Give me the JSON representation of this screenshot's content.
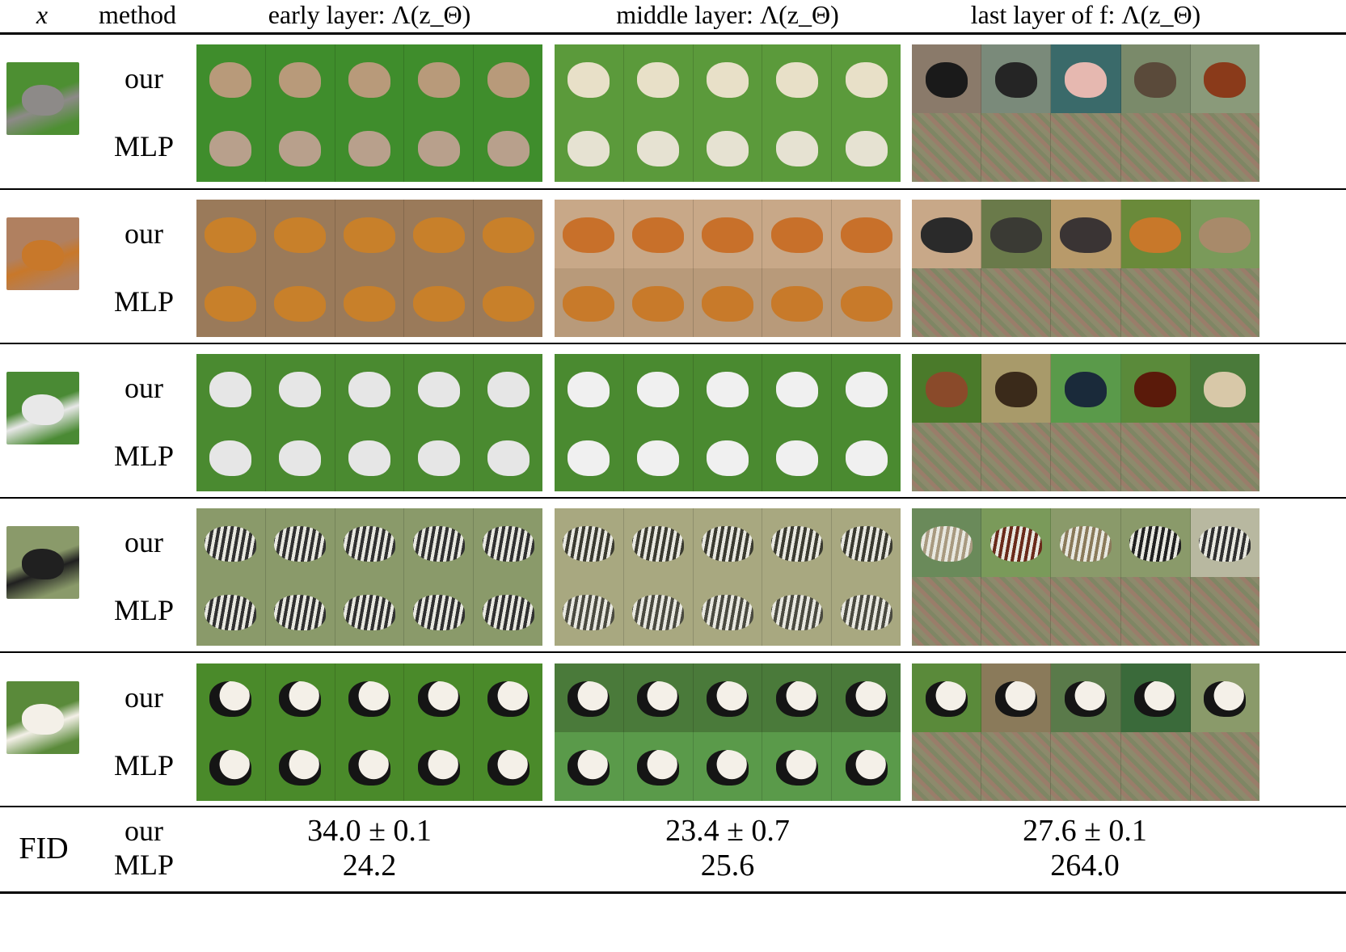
{
  "header": {
    "x_col": "x",
    "method_col": "method",
    "col_early": "early layer: Λ(z_Θ)",
    "col_middle": "middle layer: Λ(z_Θ)",
    "col_last": "last layer of f: Λ(z_Θ)"
  },
  "method_labels": {
    "ours": "our",
    "mlp": "MLP"
  },
  "rows": [
    {
      "subject": "dog-grazing",
      "x_colors": [
        "#4d8f32",
        "#8d8a88"
      ],
      "early_our": [
        "#3f8d2c",
        "#b89a7a"
      ],
      "early_mlp": [
        "#3f8d2c",
        "#b8a08c"
      ],
      "mid_our": [
        "#5b9a3b",
        "#e8e0c8"
      ],
      "mid_mlp": [
        "#5b9a3b",
        "#e6e2d2"
      ],
      "last_our": [
        [
          "#8a7a6a",
          "#1a1a1a"
        ],
        [
          "#7a8a7a",
          "#252525"
        ],
        [
          "#3a6a6a",
          "#e6b8b0"
        ],
        [
          "#7a8a6a",
          "#5a4a3a"
        ],
        [
          "#8a9a7a",
          "#8a3a1a"
        ]
      ],
      "last_mlp": [
        "#8a8a6a",
        "#9a7a6a"
      ]
    },
    {
      "subject": "red-fox",
      "x_colors": [
        "#b08060",
        "#c8782a"
      ],
      "early_our": [
        "#9a7a5a",
        "#c8802a"
      ],
      "early_mlp": [
        "#9a7a5a",
        "#c8802a"
      ],
      "mid_our": [
        "#c8a888",
        "#c8702a"
      ],
      "mid_mlp": [
        "#b89a7a",
        "#c87a2a"
      ],
      "last_our": [
        [
          "#c8a888",
          "#2a2a2a"
        ],
        [
          "#6a7a4a",
          "#3a3a34"
        ],
        [
          "#b89a6a",
          "#3a3434"
        ],
        [
          "#6a8a3a",
          "#c8782a"
        ],
        [
          "#7a9a5a",
          "#a88a6a"
        ]
      ],
      "last_mlp": [
        "#8a8a6a",
        "#9a7a6a"
      ]
    },
    {
      "subject": "dog-sitting",
      "x_colors": [
        "#4a8a34",
        "#e8e8e8"
      ],
      "early_our": [
        "#4a8a30",
        "#e6e6e6"
      ],
      "early_mlp": [
        "#4a8a30",
        "#e6e6e6"
      ],
      "mid_our": [
        "#4a8a30",
        "#f0f0f0"
      ],
      "mid_mlp": [
        "#4a8a30",
        "#f0f0f0"
      ],
      "last_our": [
        [
          "#4a7a2a",
          "#8a4a2a"
        ],
        [
          "#a89a6a",
          "#3a2a1a"
        ],
        [
          "#5a9a4a",
          "#1a2a3a"
        ],
        [
          "#5a8a3a",
          "#5a1a0a"
        ],
        [
          "#4a7a3a",
          "#d8c8a8"
        ]
      ],
      "last_mlp": [
        "#8a8a6a",
        "#9a7a6a"
      ]
    },
    {
      "subject": "zebra",
      "x_colors": [
        "#8a9a6a",
        "#202020"
      ],
      "early_our": [
        "#8a9a6a",
        "#303030"
      ],
      "early_mlp": [
        "#8a9a6a",
        "#303030"
      ],
      "mid_our": [
        "#a8a880",
        "#3a3a30"
      ],
      "mid_mlp": [
        "#a8a880",
        "#4a4a40"
      ],
      "last_our": [
        [
          "#6a8a5a",
          "#a89a80"
        ],
        [
          "#7a9a5a",
          "#6a2a1a"
        ],
        [
          "#8a9a6a",
          "#8a7a5a"
        ],
        [
          "#8a9a6a",
          "#202020"
        ],
        [
          "#b8b8a0",
          "#303030"
        ]
      ],
      "last_mlp": [
        "#8a8a6a",
        "#9a7a6a"
      ]
    },
    {
      "subject": "panda",
      "x_colors": [
        "#5a8a3a",
        "#f4f0e8"
      ],
      "early_our": [
        "#4a8a2a",
        "#f0ece0"
      ],
      "early_mlp": [
        "#4a8a2a",
        "#f0ece0"
      ],
      "mid_our": [
        "#4a7a3a",
        "#e8e4d8"
      ],
      "mid_mlp": [
        "#5a9a4a",
        "#c8c4b8"
      ],
      "last_our": [
        [
          "#5a8a3a",
          "#1a1a1a"
        ],
        [
          "#8a7a5a",
          "#2a2a30"
        ],
        [
          "#5a7a4a",
          "#1a1a2a"
        ],
        [
          "#3a6a3a",
          "#8a8aa0"
        ],
        [
          "#8a9a6a",
          "#8a7a6a"
        ]
      ],
      "last_mlp": [
        "#8a8a6a",
        "#9a7a6a"
      ]
    }
  ],
  "fid": {
    "label": "FID",
    "our_label": "our",
    "mlp_label": "MLP",
    "early": {
      "our": "34.0 ± 0.1",
      "mlp": "24.2"
    },
    "middle": {
      "our": "23.4 ± 0.7",
      "mlp": "25.6"
    },
    "last": {
      "our": "27.6 ± 0.1",
      "mlp": "264.0"
    }
  }
}
